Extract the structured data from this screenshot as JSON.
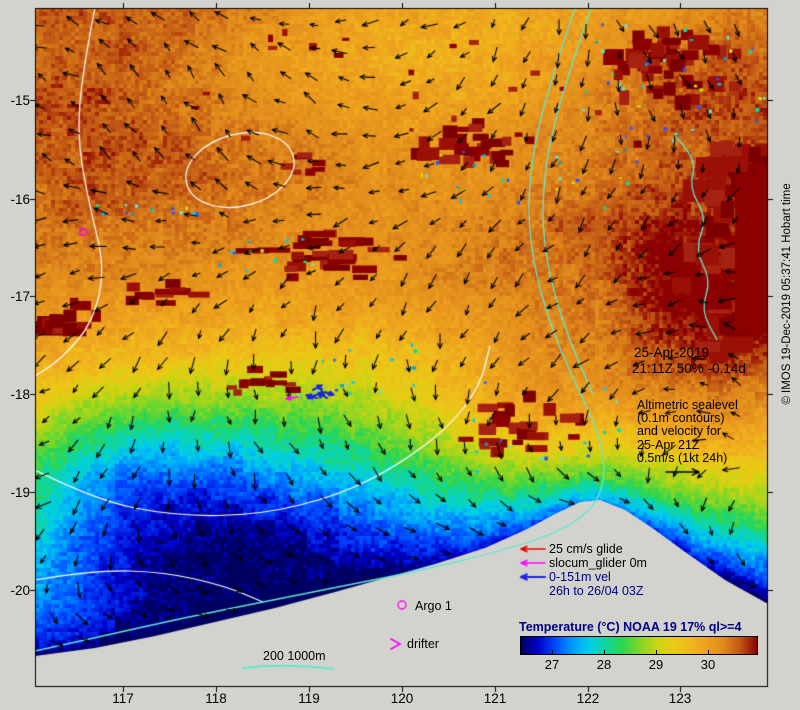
{
  "axes": {
    "x_labels": [
      "117",
      "118",
      "119",
      "120",
      "121",
      "122",
      "123"
    ],
    "y_labels": [
      "-15",
      "-16",
      "-17",
      "-18",
      "-19",
      "-20"
    ]
  },
  "info": {
    "date": "25-Apr-2019",
    "obs": "21:11Z 50% -0.14d",
    "alt_lines": [
      "Altimetric sealevel",
      "(0.1m contours)",
      "and velocity for",
      "25-Apr 21Z",
      "0.5m/s (1kt 24h)"
    ]
  },
  "legend": {
    "rows": [
      {
        "label": "25 cm/s glide",
        "color": "#e80000",
        "text_color": "#000000"
      },
      {
        "label": "slocum_glider 0m",
        "color": "#ff00ff",
        "text_color": "#000000"
      },
      {
        "label": "0-151m vel",
        "color": "#2222ee",
        "text_color": "#000088"
      },
      {
        "label": "26h to 26/04 03Z",
        "color": null,
        "text_color": "#000088"
      }
    ],
    "argo_label": "Argo 1",
    "drifter_label": "drifter",
    "depth_label": "200 1000m"
  },
  "colorbar": {
    "title": "Temperature (°C) NOAA 19 17% ql>=4",
    "ticks": [
      "27",
      "28",
      "29",
      "30"
    ],
    "colors": [
      "#000060",
      "#0000c8",
      "#0046ff",
      "#0096ff",
      "#00cdeb",
      "#10d6a0",
      "#2cd550",
      "#7cd628",
      "#c8d414",
      "#e8cc14",
      "#f0b81c",
      "#eda01e",
      "#e08a1c",
      "#c05614",
      "#8b0000"
    ]
  },
  "copyright": "© IMOS 19-Dec-2019 05:37:41 Hobart time",
  "colors": {
    "background": "#d3d3ce",
    "land": "#d3d3ce",
    "dark_red": "#8b0000",
    "contour_white": "#ffffff",
    "contour_cyan": "#63e6cf",
    "vector_black": "#000000",
    "magenta": "#ff00ff",
    "glider_blue": "#1724e8",
    "navy_text": "#000088"
  }
}
